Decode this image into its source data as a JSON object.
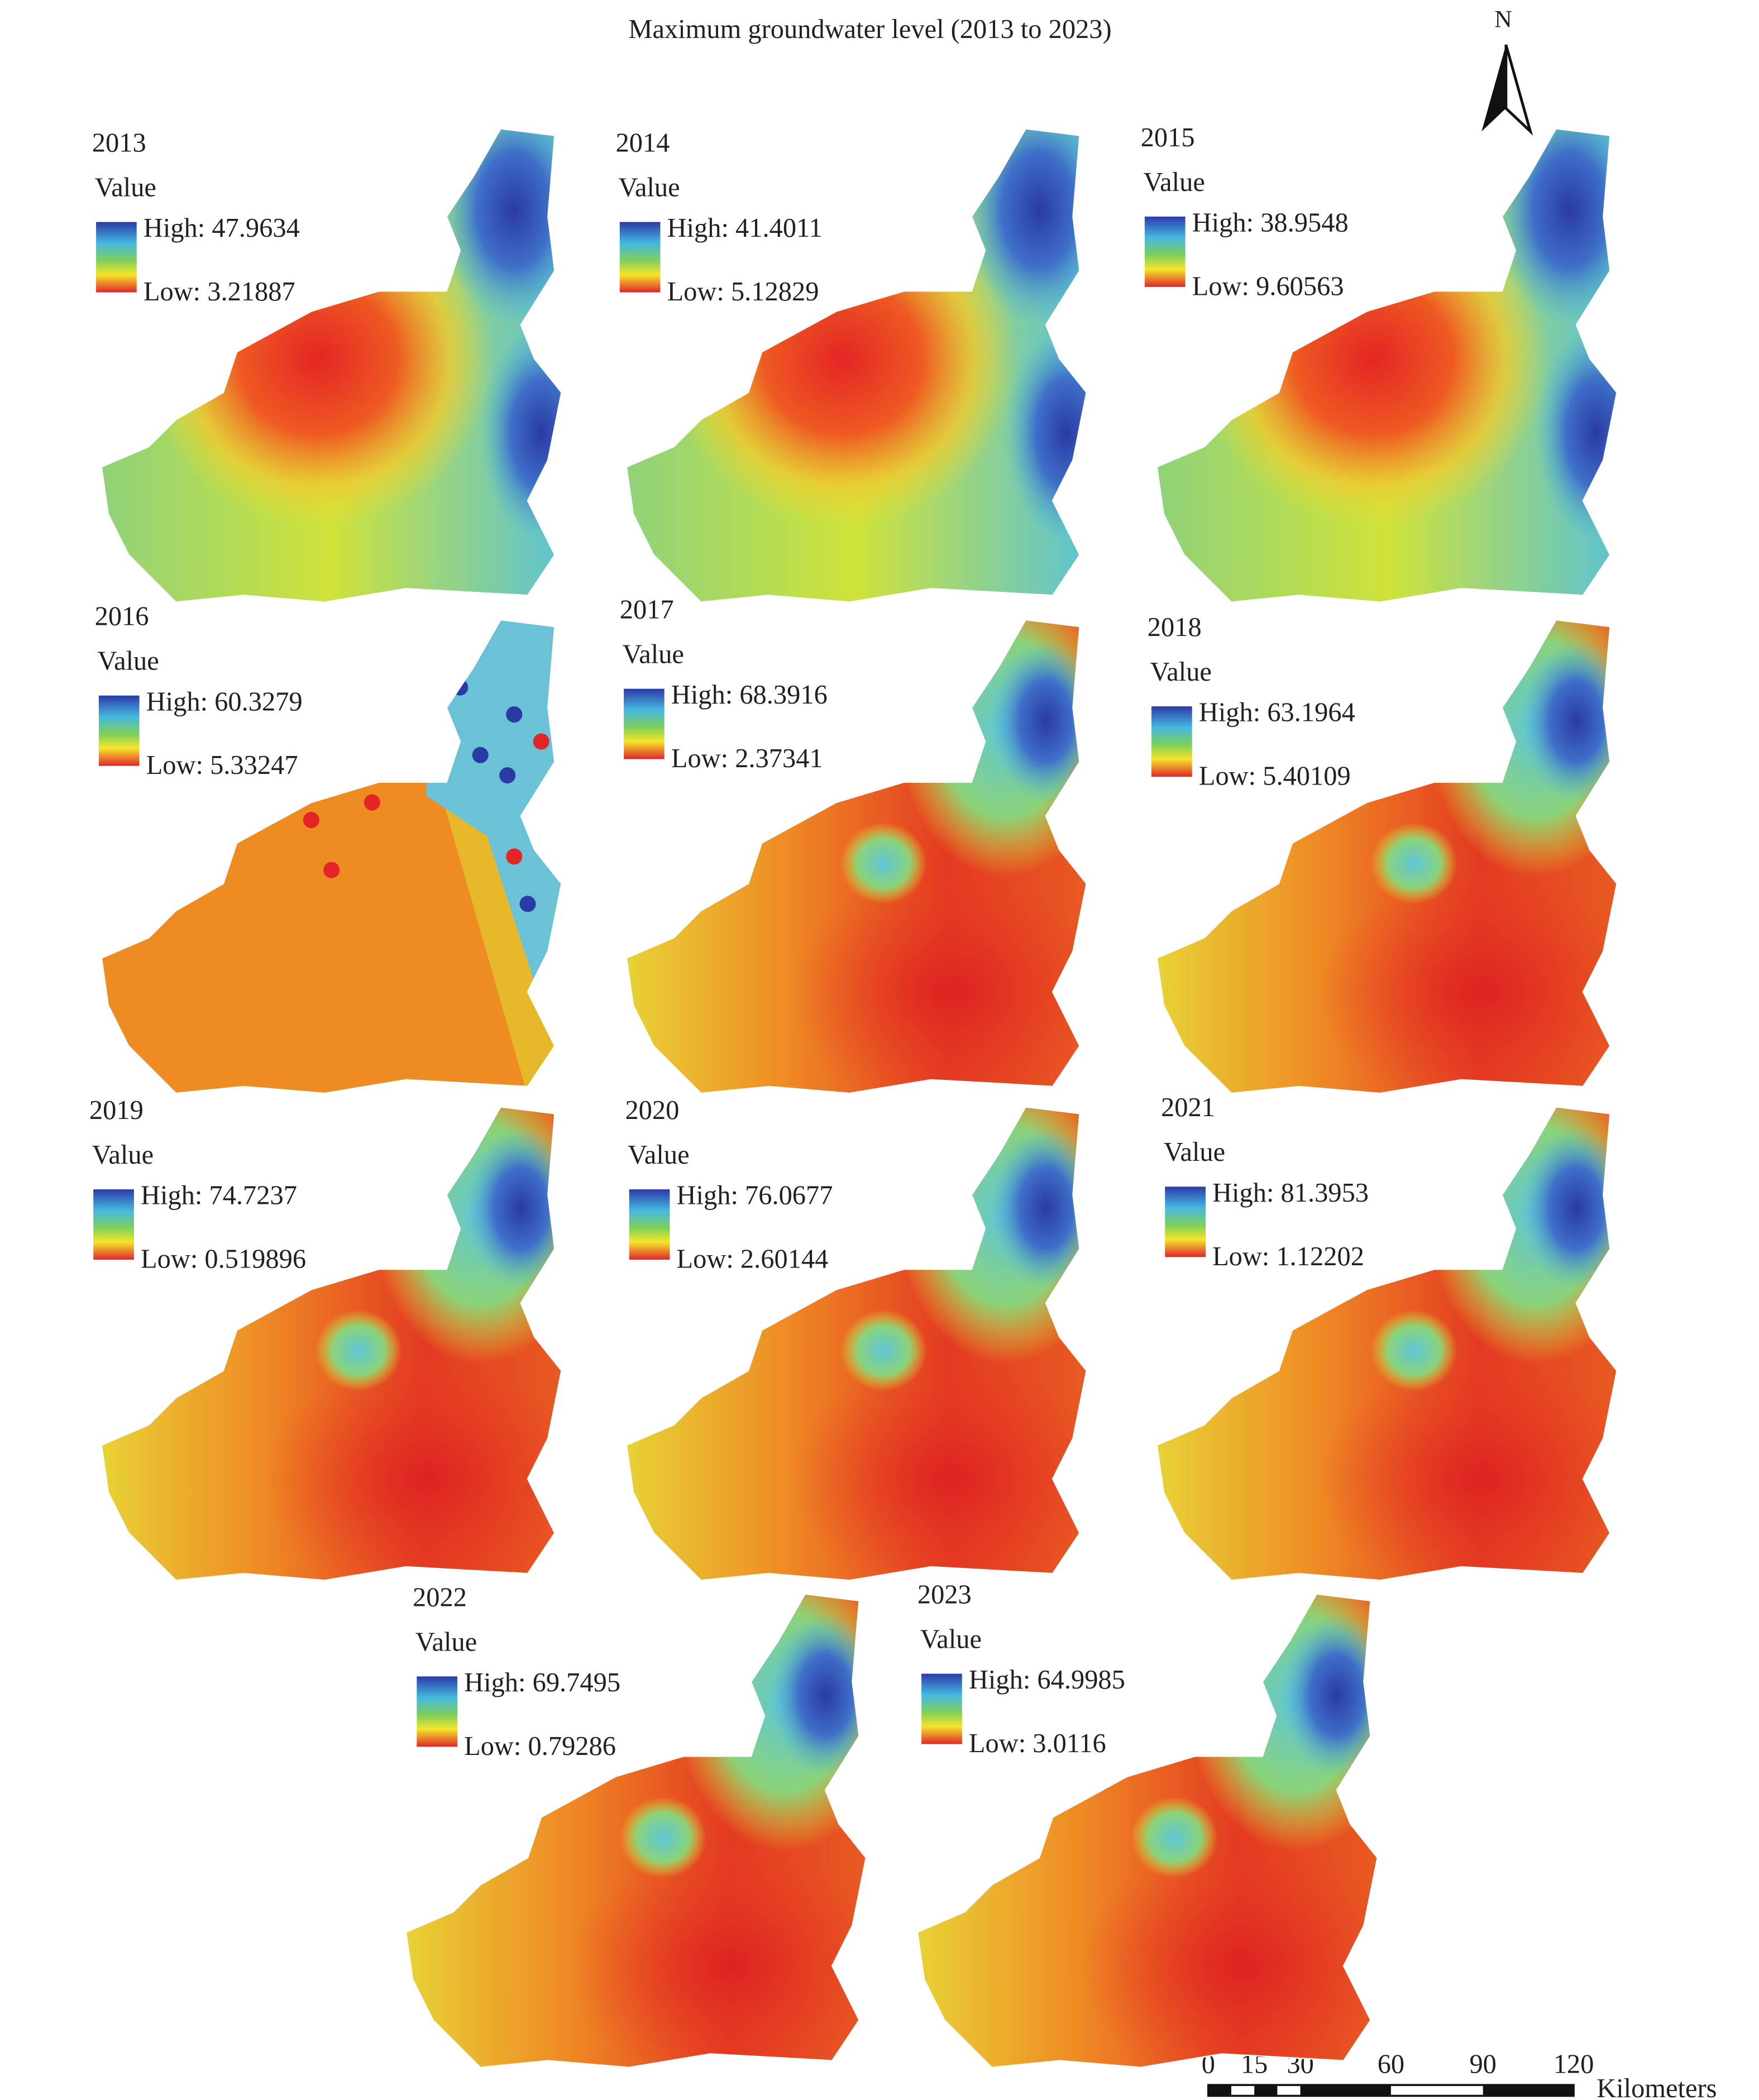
{
  "title": "Maximum groundwater level (2013 to 2023)",
  "north": "N",
  "panels": [
    {
      "year": "2013",
      "legend": "Value",
      "high": "High: 47.9634",
      "low": "Low: 3.21887"
    },
    {
      "year": "2014",
      "legend": "Value",
      "high": "High: 41.4011",
      "low": "Low: 5.12829"
    },
    {
      "year": "2015",
      "legend": "Value",
      "high": "High: 38.9548",
      "low": "Low: 9.60563"
    },
    {
      "year": "2016",
      "legend": "Value",
      "high": "High: 60.3279",
      "low": "Low: 5.33247"
    },
    {
      "year": "2017",
      "legend": "Value",
      "high": "High: 68.3916",
      "low": "Low: 2.37341"
    },
    {
      "year": "2018",
      "legend": "Value",
      "high": "High: 63.1964",
      "low": "Low: 5.40109"
    },
    {
      "year": "2019",
      "legend": "Value",
      "high": "High: 74.7237",
      "low": "Low: 0.519896"
    },
    {
      "year": "2020",
      "legend": "Value",
      "high": "High: 76.0677",
      "low": "Low: 2.60144"
    },
    {
      "year": "2021",
      "legend": "Value",
      "high": "High: 81.3953",
      "low": "Low: 1.12202"
    },
    {
      "year": "2022",
      "legend": "Value",
      "high": "High: 69.7495",
      "low": "Low: 0.79286"
    },
    {
      "year": "2023",
      "legend": "Value",
      "high": "High: 64.9985",
      "low": "Low: 3.0116"
    }
  ],
  "scale_bar": {
    "labels": [
      "0",
      "15",
      "30",
      "60",
      "90",
      "120"
    ],
    "unit": "Kilometers"
  }
}
